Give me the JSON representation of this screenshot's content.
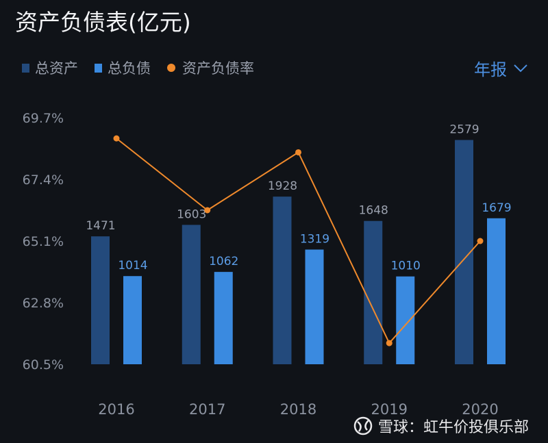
{
  "header": {
    "title": "资产负债表(亿元)",
    "period_selector": "年报"
  },
  "watermark": "雪球：虹牛价投俱乐部",
  "colors": {
    "background": "#101318",
    "total_assets": "#234a7c",
    "total_liabilities": "#3a8ae0",
    "ratio": "#f08a2c",
    "axis_text": "#8c93a0"
  },
  "chart_data": {
    "type": "bar+line",
    "title": "资产负债表(亿元)",
    "categories": [
      "2016",
      "2017",
      "2018",
      "2019",
      "2020"
    ],
    "series": [
      {
        "name": "总资产",
        "type": "bar",
        "values": [
          1471,
          1603,
          1928,
          1648,
          2579
        ]
      },
      {
        "name": "总负债",
        "type": "bar",
        "values": [
          1014,
          1062,
          1319,
          1010,
          1679
        ]
      },
      {
        "name": "资产负债率",
        "type": "line",
        "unit": "%",
        "values": [
          68.93,
          66.25,
          68.41,
          61.29,
          65.1
        ]
      }
    ],
    "y_ticks": [
      "60.5%",
      "62.8%",
      "65.1%",
      "67.4%",
      "69.7%"
    ],
    "ylim_ratio": [
      60.5,
      69.7
    ],
    "grid": false,
    "legend_placement": "top-left"
  }
}
